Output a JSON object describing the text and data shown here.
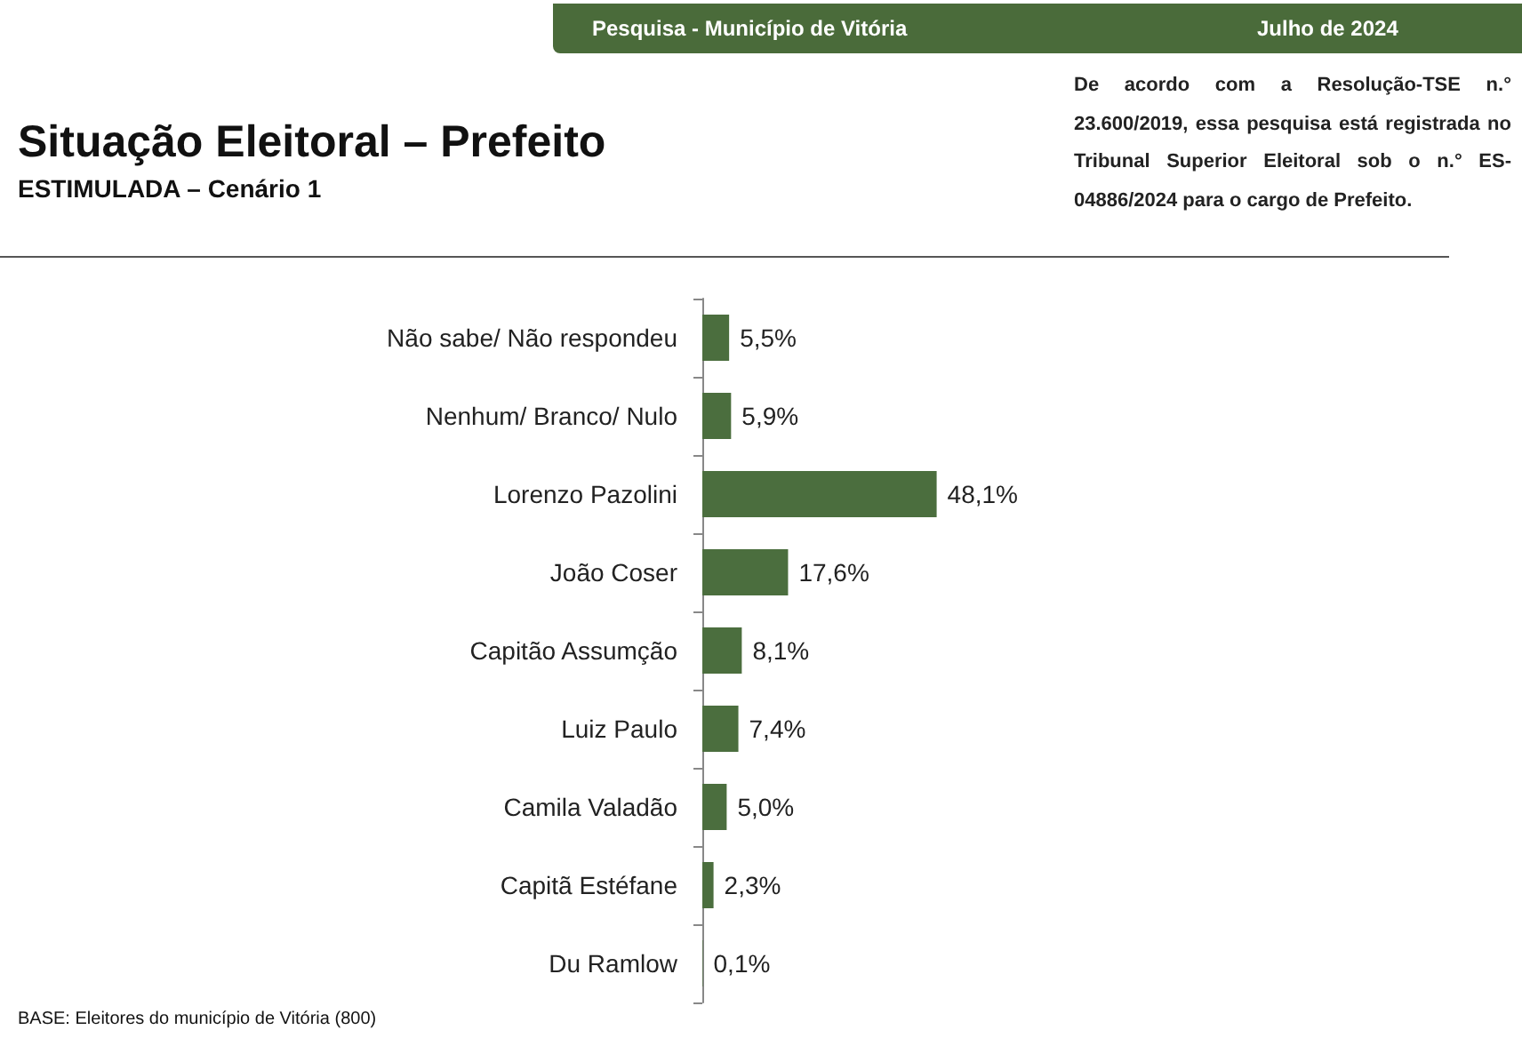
{
  "chart_data": {
    "type": "bar",
    "orientation": "horizontal",
    "title": "Situação Eleitoral – Prefeito",
    "subtitle": "ESTIMULADA – Cenário 1",
    "annotations": [
      "Pesquisa - Município de Vitória",
      "Julho de 2024",
      "De acordo com a Resolução-TSE n.° 23.600/2019, essa pesquisa está registrada no Tribunal Superior Eleitoral sob o n.° ES-04886/2024 para o cargo de Prefeito.",
      "BASE: Eleitores do município de Vitória (800)"
    ],
    "categories": [
      "Não sabe/ Não respondeu",
      "Nenhum/ Branco/ Nulo",
      "Lorenzo Pazolini",
      "João Coser",
      "Capitão Assumção",
      "Luiz Paulo",
      "Camila Valadão",
      "Capitã Estéfane",
      "Du Ramlow"
    ],
    "values": [
      5.5,
      5.9,
      48.1,
      17.6,
      8.1,
      7.4,
      5.0,
      2.3,
      0.1
    ],
    "value_labels": [
      "5,5%",
      "5,9%",
      "48,1%",
      "17,6%",
      "8,1%",
      "7,4%",
      "5,0%",
      "2,3%",
      "0,1%"
    ],
    "color": "#4b6e3e"
  }
}
